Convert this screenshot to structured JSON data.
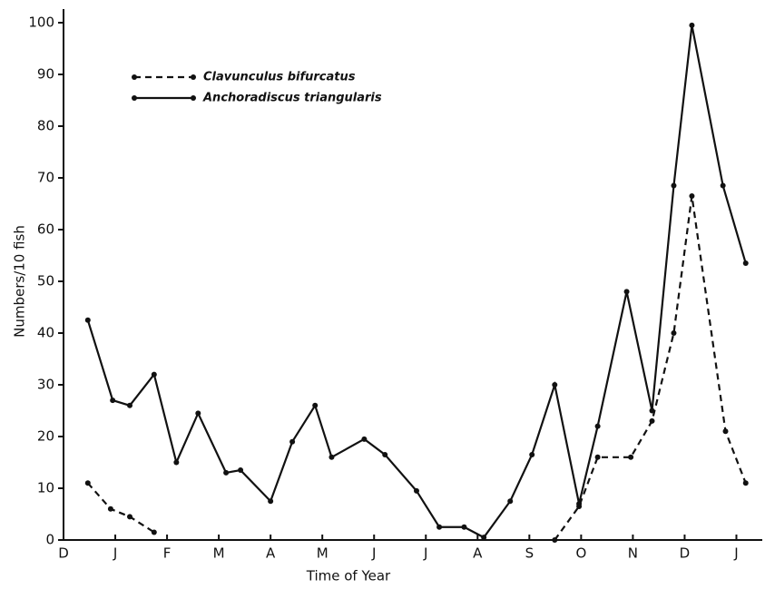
{
  "chart_data": {
    "type": "line",
    "x_label": "Time of Year",
    "y_label": "Numbers/10 fish",
    "xlim": [
      0,
      13.5
    ],
    "xticks": [
      {
        "value": 0,
        "label": "D"
      },
      {
        "value": 1,
        "label": "J"
      },
      {
        "value": 2,
        "label": "F"
      },
      {
        "value": 3,
        "label": "M"
      },
      {
        "value": 4,
        "label": "A"
      },
      {
        "value": 5,
        "label": "M"
      },
      {
        "value": 6,
        "label": "J"
      },
      {
        "value": 7,
        "label": "J"
      },
      {
        "value": 8,
        "label": "A"
      },
      {
        "value": 9,
        "label": "S"
      },
      {
        "value": 10,
        "label": "O"
      },
      {
        "value": 11,
        "label": "N"
      },
      {
        "value": 12,
        "label": "D"
      },
      {
        "value": 13,
        "label": "J"
      }
    ],
    "ylim": [
      0,
      100
    ],
    "yticks": [
      0,
      10,
      20,
      30,
      40,
      50,
      60,
      70,
      80,
      90,
      100
    ],
    "legend": "upper-left",
    "series": [
      {
        "name": "Clavunculus bifurcatus",
        "color": "#111111",
        "dashed": true,
        "x": [
          0.47,
          0.91,
          1.28,
          1.75,
          null,
          9.49,
          9.96,
          10.32,
          10.96,
          11.37,
          11.79,
          12.14,
          12.79,
          13.18
        ],
        "values": [
          11,
          6,
          4.5,
          1.5,
          null,
          0,
          6.5,
          16,
          16,
          23,
          40,
          66.5,
          21,
          11
        ]
      },
      {
        "name": "Anchoradiscus triangularis",
        "color": "#111111",
        "dashed": false,
        "x": [
          0.47,
          0.95,
          1.28,
          1.75,
          2.18,
          2.6,
          3.14,
          3.42,
          4.0,
          4.42,
          4.86,
          5.18,
          5.81,
          6.21,
          6.82,
          7.26,
          7.74,
          8.12,
          8.63,
          9.05,
          9.49,
          9.96,
          10.32,
          10.88,
          11.37,
          11.79,
          12.14,
          12.74,
          13.18
        ],
        "values": [
          42.5,
          27,
          26,
          32,
          15,
          24.5,
          13,
          13.5,
          7.5,
          19,
          26,
          16,
          19.5,
          16.5,
          9.5,
          2.5,
          2.5,
          0.5,
          7.5,
          16.5,
          30,
          7,
          22,
          48,
          25,
          68.5,
          99.5,
          68.5,
          53.5
        ]
      }
    ]
  }
}
